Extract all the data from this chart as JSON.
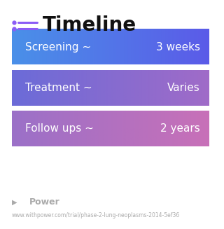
{
  "title": "Timeline",
  "background_color": "#ffffff",
  "rows": [
    {
      "label": "Screening ~",
      "value": "3 weeks",
      "color_left": "#4A90E8",
      "color_right": "#5B5BE8"
    },
    {
      "label": "Treatment ~",
      "value": "Varies",
      "color_left": "#6B6BD8",
      "color_right": "#A06BC8"
    },
    {
      "label": "Follow ups ~",
      "value": "2 years",
      "color_left": "#9B70C8",
      "color_right": "#C870B8"
    }
  ],
  "icon_color": "#8B5CF6",
  "title_fontsize": 20,
  "row_fontsize": 11,
  "footer_text": "Power",
  "footer_url": "www.withpower.com/trial/phase-2-lung-neoplasms-2014-5ef36",
  "footer_color": "#aaaaaa",
  "footer_fontsize": 5.5
}
